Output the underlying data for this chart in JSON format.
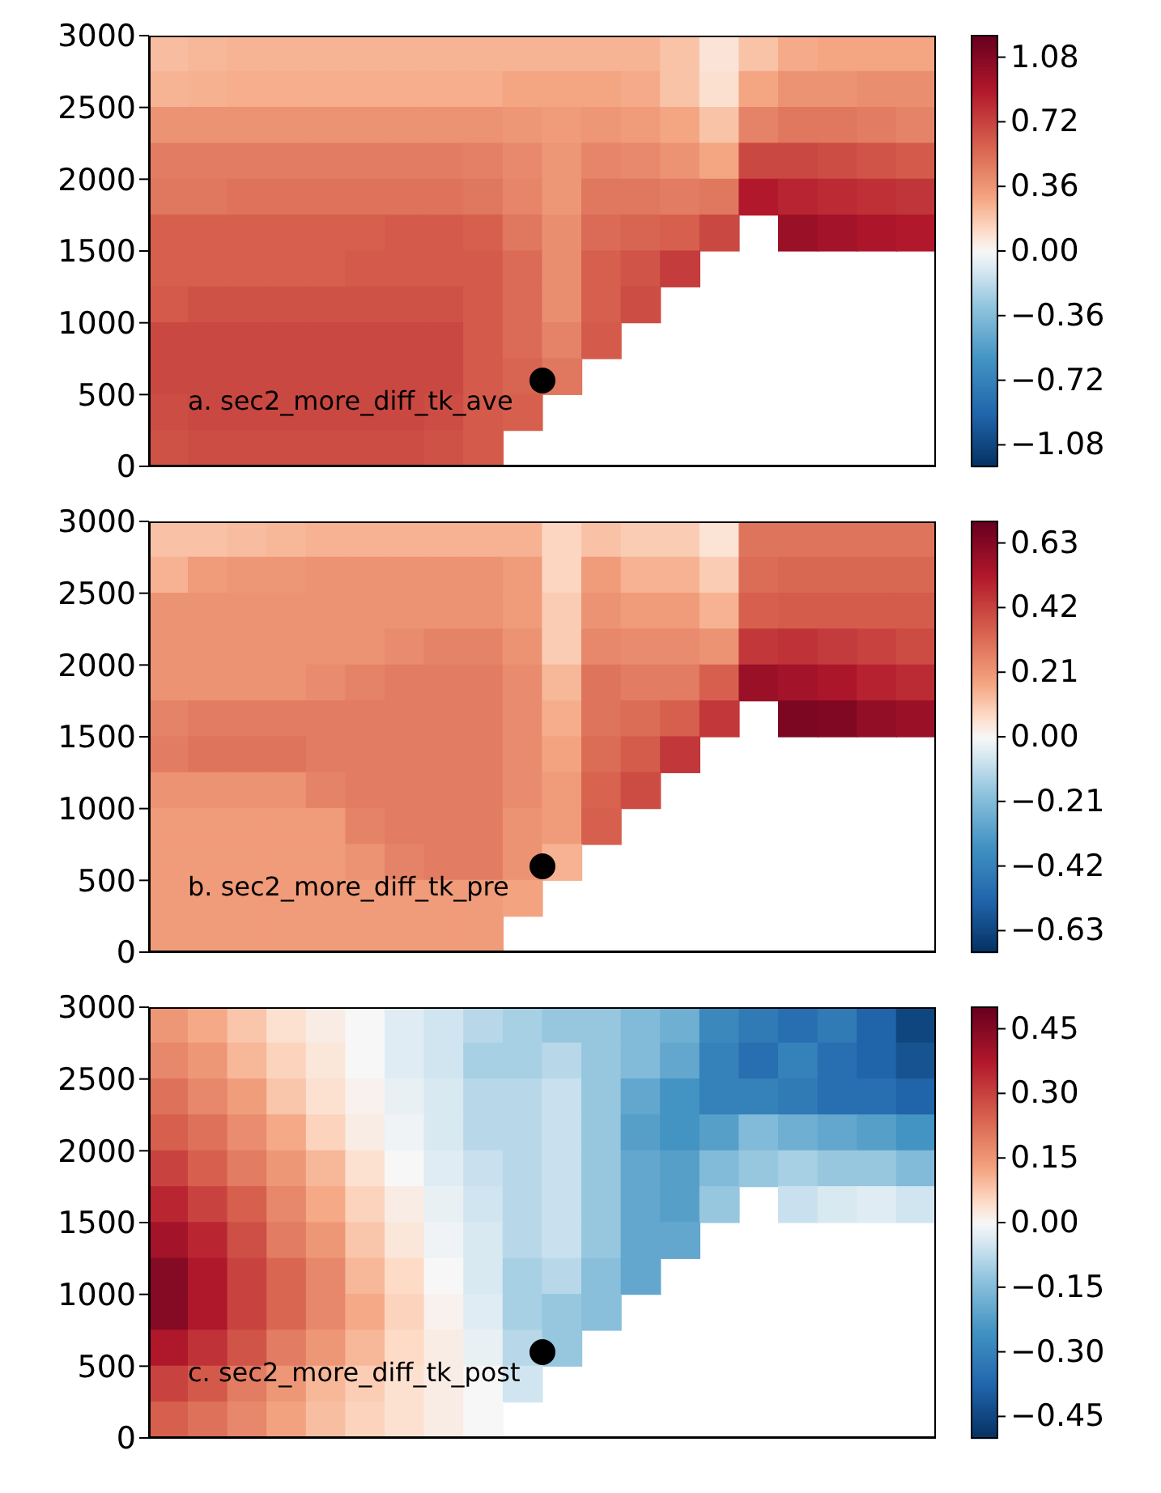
{
  "chart_data": [
    {
      "type": "heatmap",
      "annotations": [
        "a. sec2_more_diff_tk_ave"
      ],
      "tick_labels": "y",
      "ylim": [
        0,
        3000
      ],
      "yticks": [
        0,
        500,
        1000,
        1500,
        2000,
        2500,
        3000
      ],
      "clim": [
        -1.2,
        1.2
      ],
      "cticks": [
        {
          "value": -1.08,
          "label": "−1.08"
        },
        {
          "value": -0.72,
          "label": "−0.72"
        },
        {
          "value": -0.36,
          "label": "−0.36"
        },
        {
          "value": 0,
          "label": "0.00"
        },
        {
          "value": 0.36,
          "label": "0.36"
        },
        {
          "value": 0.72,
          "label": "0.72"
        },
        {
          "value": 1.08,
          "label": "1.08"
        }
      ],
      "categories": [
        null,
        null,
        null,
        null,
        null,
        null,
        null,
        null,
        null,
        null,
        null,
        null,
        null,
        null,
        null,
        null,
        null,
        null,
        null,
        null
      ],
      "cells": [
        [
          0.22,
          0.24,
          0.25,
          0.25,
          0.25,
          0.25,
          0.25,
          0.25,
          0.25,
          0.25,
          0.25,
          0.25,
          0.25,
          0.2,
          0.08,
          0.2,
          0.28,
          0.3,
          0.3,
          0.3
        ],
        [
          0.25,
          0.26,
          0.27,
          0.27,
          0.27,
          0.27,
          0.27,
          0.27,
          0.27,
          0.3,
          0.3,
          0.3,
          0.28,
          0.2,
          0.1,
          0.3,
          0.38,
          0.38,
          0.4,
          0.4
        ],
        [
          0.38,
          0.38,
          0.38,
          0.38,
          0.38,
          0.38,
          0.38,
          0.38,
          0.38,
          0.36,
          0.34,
          0.36,
          0.34,
          0.3,
          0.2,
          0.45,
          0.5,
          0.5,
          0.48,
          0.45
        ],
        [
          0.48,
          0.48,
          0.48,
          0.48,
          0.48,
          0.48,
          0.48,
          0.48,
          0.46,
          0.42,
          0.36,
          0.44,
          0.42,
          0.38,
          0.3,
          0.7,
          0.7,
          0.68,
          0.65,
          0.62
        ],
        [
          0.5,
          0.5,
          0.52,
          0.52,
          0.52,
          0.52,
          0.52,
          0.52,
          0.5,
          0.44,
          0.36,
          0.5,
          0.5,
          0.48,
          0.5,
          0.9,
          0.85,
          0.82,
          0.8,
          0.78
        ],
        [
          0.6,
          0.6,
          0.6,
          0.6,
          0.6,
          0.6,
          0.62,
          0.62,
          0.6,
          0.5,
          0.4,
          0.55,
          0.58,
          0.6,
          0.7,
          null,
          1.0,
          0.96,
          0.92,
          0.9
        ],
        [
          0.6,
          0.6,
          0.6,
          0.6,
          0.6,
          0.62,
          0.62,
          0.62,
          0.62,
          0.55,
          0.4,
          0.6,
          0.65,
          0.75,
          null,
          null,
          null,
          null,
          null,
          null
        ],
        [
          0.62,
          0.66,
          0.66,
          0.66,
          0.66,
          0.66,
          0.66,
          0.66,
          0.62,
          0.55,
          0.4,
          0.6,
          0.68,
          null,
          null,
          null,
          null,
          null,
          null,
          null
        ],
        [
          0.7,
          0.7,
          0.7,
          0.7,
          0.7,
          0.7,
          0.7,
          0.7,
          0.62,
          0.55,
          0.45,
          0.62,
          null,
          null,
          null,
          null,
          null,
          null,
          null,
          null
        ],
        [
          0.7,
          0.7,
          0.7,
          0.7,
          0.7,
          0.7,
          0.7,
          0.7,
          0.62,
          0.58,
          0.5,
          null,
          null,
          null,
          null,
          null,
          null,
          null,
          null,
          null
        ],
        [
          0.68,
          0.7,
          0.7,
          0.7,
          0.7,
          0.7,
          0.7,
          0.68,
          0.62,
          0.6,
          null,
          null,
          null,
          null,
          null,
          null,
          null,
          null,
          null,
          null
        ],
        [
          0.66,
          0.68,
          0.68,
          0.68,
          0.68,
          0.68,
          0.68,
          0.66,
          0.62,
          null,
          null,
          null,
          null,
          null,
          null,
          null,
          null,
          null,
          null,
          null
        ]
      ]
    },
    {
      "type": "heatmap",
      "annotations": [
        "b. sec2_more_diff_tk_pre"
      ],
      "tick_labels": "y",
      "ylim": [
        0,
        3000
      ],
      "yticks": [
        0,
        500,
        1000,
        1500,
        2000,
        2500,
        3000
      ],
      "clim": [
        -0.7,
        0.7
      ],
      "cticks": [
        {
          "value": -0.63,
          "label": "−0.63"
        },
        {
          "value": -0.42,
          "label": "−0.42"
        },
        {
          "value": -0.21,
          "label": "−0.21"
        },
        {
          "value": 0,
          "label": "0.00"
        },
        {
          "value": 0.21,
          "label": "0.21"
        },
        {
          "value": 0.42,
          "label": "0.42"
        },
        {
          "value": 0.63,
          "label": "0.63"
        }
      ],
      "categories": [
        null,
        null,
        null,
        null,
        null,
        null,
        null,
        null,
        null,
        null,
        null,
        null,
        null,
        null,
        null,
        null,
        null,
        null,
        null,
        null
      ],
      "cells": [
        [
          0.12,
          0.12,
          0.13,
          0.14,
          0.15,
          0.15,
          0.15,
          0.15,
          0.15,
          0.15,
          0.08,
          0.12,
          0.1,
          0.1,
          0.05,
          0.3,
          0.3,
          0.3,
          0.3,
          0.3
        ],
        [
          0.15,
          0.2,
          0.21,
          0.21,
          0.22,
          0.22,
          0.22,
          0.22,
          0.22,
          0.2,
          0.08,
          0.2,
          0.15,
          0.15,
          0.1,
          0.32,
          0.33,
          0.33,
          0.33,
          0.33
        ],
        [
          0.22,
          0.22,
          0.22,
          0.22,
          0.22,
          0.22,
          0.22,
          0.22,
          0.22,
          0.2,
          0.1,
          0.22,
          0.2,
          0.2,
          0.15,
          0.35,
          0.36,
          0.36,
          0.36,
          0.36
        ],
        [
          0.22,
          0.22,
          0.22,
          0.22,
          0.22,
          0.22,
          0.24,
          0.26,
          0.26,
          0.22,
          0.1,
          0.25,
          0.24,
          0.24,
          0.22,
          0.45,
          0.46,
          0.44,
          0.42,
          0.4
        ],
        [
          0.22,
          0.22,
          0.22,
          0.22,
          0.24,
          0.26,
          0.28,
          0.28,
          0.28,
          0.24,
          0.14,
          0.3,
          0.28,
          0.28,
          0.35,
          0.58,
          0.56,
          0.54,
          0.5,
          0.48
        ],
        [
          0.26,
          0.28,
          0.28,
          0.28,
          0.28,
          0.28,
          0.28,
          0.28,
          0.28,
          0.24,
          0.16,
          0.3,
          0.32,
          0.35,
          0.45,
          null,
          0.65,
          0.64,
          0.6,
          0.58
        ],
        [
          0.28,
          0.3,
          0.3,
          0.3,
          0.28,
          0.28,
          0.28,
          0.28,
          0.28,
          0.24,
          0.18,
          0.32,
          0.36,
          0.45,
          null,
          null,
          null,
          null,
          null,
          null
        ],
        [
          0.22,
          0.22,
          0.22,
          0.22,
          0.26,
          0.28,
          0.28,
          0.28,
          0.28,
          0.24,
          0.2,
          0.34,
          0.4,
          null,
          null,
          null,
          null,
          null,
          null,
          null
        ],
        [
          0.2,
          0.2,
          0.2,
          0.2,
          0.2,
          0.26,
          0.28,
          0.28,
          0.28,
          0.22,
          0.2,
          0.35,
          null,
          null,
          null,
          null,
          null,
          null,
          null,
          null
        ],
        [
          0.2,
          0.2,
          0.2,
          0.2,
          0.2,
          0.22,
          0.26,
          0.28,
          0.28,
          0.22,
          0.15,
          null,
          null,
          null,
          null,
          null,
          null,
          null,
          null,
          null
        ],
        [
          0.2,
          0.2,
          0.2,
          0.2,
          0.2,
          0.2,
          0.2,
          0.2,
          0.2,
          0.18,
          null,
          null,
          null,
          null,
          null,
          null,
          null,
          null,
          null,
          null
        ],
        [
          0.2,
          0.2,
          0.2,
          0.2,
          0.2,
          0.2,
          0.2,
          0.2,
          0.2,
          null,
          null,
          null,
          null,
          null,
          null,
          null,
          null,
          null,
          null,
          null
        ]
      ]
    },
    {
      "type": "heatmap",
      "annotations": [
        "c. sec2_more_diff_tk_post"
      ],
      "tick_labels": "y",
      "ylim": [
        0,
        3000
      ],
      "yticks": [
        0,
        500,
        1000,
        1500,
        2000,
        2500,
        3000
      ],
      "clim": [
        -0.5,
        0.5
      ],
      "cticks": [
        {
          "value": -0.45,
          "label": "−0.45"
        },
        {
          "value": -0.3,
          "label": "−0.30"
        },
        {
          "value": -0.15,
          "label": "−0.15"
        },
        {
          "value": 0,
          "label": "0.00"
        },
        {
          "value": 0.15,
          "label": "0.15"
        },
        {
          "value": 0.3,
          "label": "0.30"
        },
        {
          "value": 0.45,
          "label": "0.45"
        }
      ],
      "categories": [
        null,
        null,
        null,
        null,
        null,
        null,
        null,
        null,
        null,
        null,
        null,
        null,
        null,
        null,
        null,
        null,
        null,
        null,
        null,
        null
      ],
      "cells": [
        [
          0.15,
          0.12,
          0.08,
          0.04,
          0.02,
          0,
          -0.03,
          -0.05,
          -0.08,
          -0.1,
          -0.12,
          -0.12,
          -0.15,
          -0.18,
          -0.28,
          -0.32,
          -0.35,
          -0.32,
          -0.38,
          -0.45
        ],
        [
          0.18,
          0.15,
          0.1,
          0.06,
          0.03,
          0,
          -0.03,
          -0.05,
          -0.1,
          -0.1,
          -0.08,
          -0.12,
          -0.15,
          -0.2,
          -0.3,
          -0.35,
          -0.3,
          -0.35,
          -0.38,
          -0.42
        ],
        [
          0.22,
          0.18,
          0.14,
          0.08,
          0.04,
          0.01,
          -0.02,
          -0.04,
          -0.08,
          -0.08,
          -0.06,
          -0.12,
          -0.2,
          -0.25,
          -0.3,
          -0.3,
          -0.32,
          -0.35,
          -0.35,
          -0.38
        ],
        [
          0.25,
          0.22,
          0.17,
          0.12,
          0.06,
          0.02,
          -0.01,
          -0.04,
          -0.08,
          -0.08,
          -0.06,
          -0.12,
          -0.22,
          -0.25,
          -0.22,
          -0.15,
          -0.18,
          -0.2,
          -0.22,
          -0.25
        ],
        [
          0.3,
          0.25,
          0.2,
          0.15,
          0.1,
          0.04,
          0,
          -0.03,
          -0.06,
          -0.08,
          -0.06,
          -0.12,
          -0.2,
          -0.22,
          -0.15,
          -0.12,
          -0.1,
          -0.12,
          -0.12,
          -0.15
        ],
        [
          0.35,
          0.3,
          0.25,
          0.18,
          0.12,
          0.06,
          0.02,
          -0.02,
          -0.05,
          -0.08,
          -0.06,
          -0.12,
          -0.2,
          -0.22,
          -0.12,
          null,
          -0.06,
          -0.04,
          -0.03,
          -0.05
        ],
        [
          0.4,
          0.35,
          0.28,
          0.2,
          0.15,
          0.08,
          0.03,
          -0.01,
          -0.04,
          -0.08,
          -0.06,
          -0.12,
          -0.2,
          -0.2,
          null,
          null,
          null,
          null,
          null,
          null
        ],
        [
          0.45,
          0.38,
          0.3,
          0.24,
          0.18,
          0.1,
          0.05,
          0,
          -0.04,
          -0.1,
          -0.08,
          -0.14,
          -0.2,
          null,
          null,
          null,
          null,
          null,
          null,
          null
        ],
        [
          0.45,
          0.38,
          0.3,
          0.24,
          0.18,
          0.12,
          0.06,
          0.01,
          -0.03,
          -0.1,
          -0.12,
          -0.14,
          null,
          null,
          null,
          null,
          null,
          null,
          null,
          null
        ],
        [
          0.38,
          0.33,
          0.27,
          0.2,
          0.15,
          0.1,
          0.05,
          0.02,
          -0.02,
          -0.08,
          -0.12,
          null,
          null,
          null,
          null,
          null,
          null,
          null,
          null,
          null
        ],
        [
          0.3,
          0.26,
          0.2,
          0.15,
          0.1,
          0.07,
          0.04,
          0.02,
          0,
          -0.05,
          null,
          null,
          null,
          null,
          null,
          null,
          null,
          null,
          null,
          null
        ],
        [
          0.25,
          0.22,
          0.18,
          0.13,
          0.09,
          0.06,
          0.04,
          0.02,
          0,
          null,
          null,
          null,
          null,
          null,
          null,
          null,
          null,
          null,
          null,
          null
        ]
      ]
    }
  ]
}
